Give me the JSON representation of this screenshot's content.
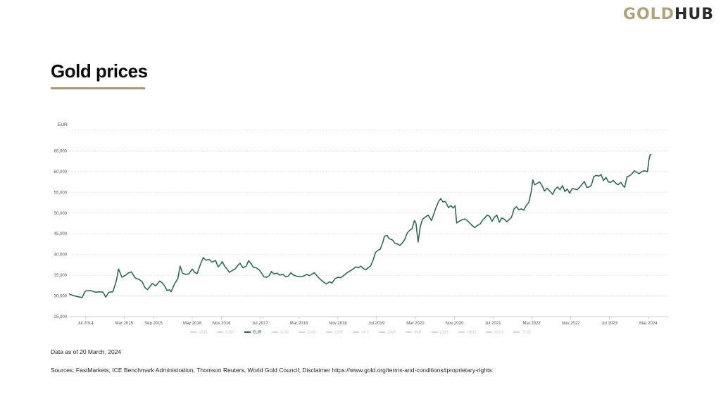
{
  "brand": {
    "part1": "GOLD",
    "part2": "HUB",
    "color_gold": "#b1a27a",
    "color_dark": "#2a2a2a"
  },
  "page_title": "Gold prices",
  "legend": [
    {
      "label": "USD",
      "active": false
    },
    {
      "label": "GBP",
      "active": false
    },
    {
      "label": "EUR",
      "active": true
    },
    {
      "label": "AUD",
      "active": false
    },
    {
      "label": "CAD",
      "active": false
    },
    {
      "label": "CHF",
      "active": false
    },
    {
      "label": "JPY",
      "active": false
    },
    {
      "label": "ZAR",
      "active": false
    },
    {
      "label": "INR",
      "active": false
    },
    {
      "label": "CNY",
      "active": false
    },
    {
      "label": "HKD",
      "active": false
    },
    {
      "label": "MXN",
      "active": false
    },
    {
      "label": "SGD",
      "active": false
    }
  ],
  "note": "Data as of 20 March, 2024",
  "sources": "Sources: FastMarkets, ICE Benchmark Administration, Thomson Reuters, World Gold Council; Disclaimer https://www.gold.org/terms-and-conditions#proprietary-rights",
  "chart_data": {
    "type": "line",
    "ylabel": "EUR",
    "ylim": [
      25000,
      70000
    ],
    "yticks": [
      "25,000",
      "30,000",
      "35,000",
      "40,000",
      "45,000",
      "50,000",
      "55,000",
      "60,000",
      "65,000"
    ],
    "ytick_values": [
      25000,
      30000,
      35000,
      40000,
      45000,
      50000,
      55000,
      60000,
      65000
    ],
    "xlim": [
      "2014-03-20",
      "2024-03-20"
    ],
    "xticks": [
      {
        "label": "Jul 2014",
        "date": "2014-07-01"
      },
      {
        "label": "Mar 2015",
        "date": "2015-03-01"
      },
      {
        "label": "Sep 2015",
        "date": "2015-09-01"
      },
      {
        "label": "May 2016",
        "date": "2016-05-01"
      },
      {
        "label": "Nov 2016",
        "date": "2016-11-01"
      },
      {
        "label": "Jul 2017",
        "date": "2017-07-01"
      },
      {
        "label": "Mar 2018",
        "date": "2018-03-01"
      },
      {
        "label": "Nov 2018",
        "date": "2018-11-01"
      },
      {
        "label": "Jul 2019",
        "date": "2019-07-01"
      },
      {
        "label": "Mar 2020",
        "date": "2020-03-01"
      },
      {
        "label": "Nov 2020",
        "date": "2020-11-01"
      },
      {
        "label": "Jul 2021",
        "date": "2021-07-01"
      },
      {
        "label": "Mar 2022",
        "date": "2022-03-01"
      },
      {
        "label": "Nov 2022",
        "date": "2022-11-01"
      },
      {
        "label": "Jul 2023",
        "date": "2023-07-01"
      },
      {
        "label": "Mar 2024",
        "date": "2024-03-01"
      }
    ],
    "grid": true,
    "series": [
      {
        "name": "EUR",
        "color": "#2c6b59",
        "points": [
          [
            "2014-03-20",
            30500
          ],
          [
            "2014-04-15",
            30100
          ],
          [
            "2014-05-15",
            29800
          ],
          [
            "2014-06-10",
            29600
          ],
          [
            "2014-07-01",
            31200
          ],
          [
            "2014-08-01",
            31300
          ],
          [
            "2014-09-01",
            30900
          ],
          [
            "2014-10-01",
            31000
          ],
          [
            "2014-10-20",
            30900
          ],
          [
            "2014-11-05",
            29700
          ],
          [
            "2014-11-25",
            30900
          ],
          [
            "2014-12-20",
            31000
          ],
          [
            "2015-01-10",
            33500
          ],
          [
            "2015-01-25",
            36500
          ],
          [
            "2015-02-15",
            34500
          ],
          [
            "2015-03-10",
            35000
          ],
          [
            "2015-03-25",
            35500
          ],
          [
            "2015-04-15",
            35800
          ],
          [
            "2015-05-10",
            34300
          ],
          [
            "2015-06-01",
            34000
          ],
          [
            "2015-06-20",
            33500
          ],
          [
            "2015-07-10",
            32000
          ],
          [
            "2015-07-25",
            31500
          ],
          [
            "2015-08-10",
            32300
          ],
          [
            "2015-08-25",
            33000
          ],
          [
            "2015-09-15",
            32400
          ],
          [
            "2015-10-10",
            33600
          ],
          [
            "2015-10-25",
            33200
          ],
          [
            "2015-11-10",
            32400
          ],
          [
            "2015-11-25",
            31300
          ],
          [
            "2015-12-10",
            31500
          ],
          [
            "2015-12-20",
            31000
          ],
          [
            "2016-01-10",
            32800
          ],
          [
            "2016-02-01",
            34200
          ],
          [
            "2016-02-15",
            37200
          ],
          [
            "2016-03-01",
            35500
          ],
          [
            "2016-03-20",
            35200
          ],
          [
            "2016-04-10",
            35300
          ],
          [
            "2016-05-01",
            36500
          ],
          [
            "2016-05-15",
            35700
          ],
          [
            "2016-06-01",
            35400
          ],
          [
            "2016-06-25",
            38000
          ],
          [
            "2016-07-10",
            39300
          ],
          [
            "2016-07-25",
            38600
          ],
          [
            "2016-08-15",
            38800
          ],
          [
            "2016-09-01",
            38200
          ],
          [
            "2016-09-25",
            38500
          ],
          [
            "2016-10-10",
            37000
          ],
          [
            "2016-10-25",
            37600
          ],
          [
            "2016-11-05",
            38300
          ],
          [
            "2016-11-20",
            37200
          ],
          [
            "2016-12-05",
            36500
          ],
          [
            "2016-12-20",
            35700
          ],
          [
            "2017-01-10",
            36200
          ],
          [
            "2017-01-25",
            36500
          ],
          [
            "2017-02-10",
            37300
          ],
          [
            "2017-02-25",
            37900
          ],
          [
            "2017-03-15",
            36800
          ],
          [
            "2017-04-05",
            37200
          ],
          [
            "2017-04-20",
            38500
          ],
          [
            "2017-05-05",
            37800
          ],
          [
            "2017-05-20",
            36900
          ],
          [
            "2017-06-05",
            36800
          ],
          [
            "2017-06-25",
            36300
          ],
          [
            "2017-07-10",
            35500
          ],
          [
            "2017-07-25",
            34600
          ],
          [
            "2017-08-10",
            34500
          ],
          [
            "2017-08-25",
            34800
          ],
          [
            "2017-09-10",
            35900
          ],
          [
            "2017-09-25",
            35300
          ],
          [
            "2017-10-15",
            35500
          ],
          [
            "2017-11-01",
            35000
          ],
          [
            "2017-11-20",
            35200
          ],
          [
            "2017-12-10",
            34600
          ],
          [
            "2017-12-25",
            34800
          ],
          [
            "2018-01-10",
            35600
          ],
          [
            "2018-01-25",
            35100
          ],
          [
            "2018-02-10",
            34800
          ],
          [
            "2018-02-25",
            34700
          ],
          [
            "2018-03-15",
            34600
          ],
          [
            "2018-04-05",
            34900
          ],
          [
            "2018-04-20",
            35200
          ],
          [
            "2018-05-05",
            34900
          ],
          [
            "2018-05-20",
            35200
          ],
          [
            "2018-06-05",
            35600
          ],
          [
            "2018-06-20",
            35000
          ],
          [
            "2018-07-05",
            34300
          ],
          [
            "2018-07-20",
            33800
          ],
          [
            "2018-08-05",
            33300
          ],
          [
            "2018-08-20",
            32900
          ],
          [
            "2018-09-10",
            33400
          ],
          [
            "2018-09-25",
            33100
          ],
          [
            "2018-10-15",
            34200
          ],
          [
            "2018-11-01",
            34500
          ],
          [
            "2018-11-20",
            34400
          ],
          [
            "2018-12-10",
            35000
          ],
          [
            "2018-12-25",
            35500
          ],
          [
            "2019-01-15",
            36000
          ],
          [
            "2019-02-05",
            36500
          ],
          [
            "2019-02-20",
            37000
          ],
          [
            "2019-03-10",
            36800
          ],
          [
            "2019-03-25",
            37200
          ],
          [
            "2019-04-10",
            36600
          ],
          [
            "2019-04-25",
            36300
          ],
          [
            "2019-05-10",
            36800
          ],
          [
            "2019-05-25",
            37200
          ],
          [
            "2019-06-10",
            38700
          ],
          [
            "2019-06-25",
            40500
          ],
          [
            "2019-07-10",
            41000
          ],
          [
            "2019-07-25",
            41300
          ],
          [
            "2019-08-10",
            43000
          ],
          [
            "2019-08-20",
            44400
          ],
          [
            "2019-09-05",
            44600
          ],
          [
            "2019-09-20",
            43800
          ],
          [
            "2019-10-10",
            43500
          ],
          [
            "2019-10-25",
            42700
          ],
          [
            "2019-11-10",
            42500
          ],
          [
            "2019-11-25",
            42200
          ],
          [
            "2019-12-10",
            42800
          ],
          [
            "2019-12-25",
            43600
          ],
          [
            "2020-01-10",
            45200
          ],
          [
            "2020-01-25",
            45800
          ],
          [
            "2020-02-10",
            46300
          ],
          [
            "2020-02-24",
            48200
          ],
          [
            "2020-03-05",
            47500
          ],
          [
            "2020-03-18",
            43000
          ],
          [
            "2020-04-01",
            46800
          ],
          [
            "2020-04-15",
            48500
          ],
          [
            "2020-05-01",
            49000
          ],
          [
            "2020-05-20",
            49500
          ],
          [
            "2020-06-10",
            48200
          ],
          [
            "2020-06-25",
            49800
          ],
          [
            "2020-07-10",
            51500
          ],
          [
            "2020-07-25",
            52800
          ],
          [
            "2020-08-07",
            53500
          ],
          [
            "2020-08-20",
            52700
          ],
          [
            "2020-09-05",
            52800
          ],
          [
            "2020-09-25",
            51300
          ],
          [
            "2020-10-10",
            51800
          ],
          [
            "2020-10-25",
            51200
          ],
          [
            "2020-11-05",
            51800
          ],
          [
            "2020-11-15",
            47600
          ],
          [
            "2020-11-30",
            48000
          ],
          [
            "2020-12-15",
            48300
          ],
          [
            "2021-01-05",
            48600
          ],
          [
            "2021-01-20",
            48200
          ],
          [
            "2021-02-05",
            47600
          ],
          [
            "2021-02-20",
            47000
          ],
          [
            "2021-03-08",
            46500
          ],
          [
            "2021-03-25",
            47000
          ],
          [
            "2021-04-10",
            47300
          ],
          [
            "2021-04-25",
            48200
          ],
          [
            "2021-05-10",
            48800
          ],
          [
            "2021-05-25",
            49500
          ],
          [
            "2021-06-10",
            49200
          ],
          [
            "2021-06-25",
            48000
          ],
          [
            "2021-07-10",
            49000
          ],
          [
            "2021-07-25",
            49500
          ],
          [
            "2021-08-10",
            47800
          ],
          [
            "2021-08-25",
            48800
          ],
          [
            "2021-09-10",
            48500
          ],
          [
            "2021-09-25",
            47900
          ],
          [
            "2021-10-10",
            48400
          ],
          [
            "2021-10-25",
            49000
          ],
          [
            "2021-11-10",
            51000
          ],
          [
            "2021-11-25",
            51500
          ],
          [
            "2021-12-10",
            50800
          ],
          [
            "2021-12-25",
            51000
          ],
          [
            "2022-01-10",
            50700
          ],
          [
            "2022-01-25",
            51800
          ],
          [
            "2022-02-10",
            52500
          ],
          [
            "2022-02-25",
            55000
          ],
          [
            "2022-03-08",
            58000
          ],
          [
            "2022-03-20",
            56800
          ],
          [
            "2022-04-05",
            57200
          ],
          [
            "2022-04-20",
            57500
          ],
          [
            "2022-05-05",
            56600
          ],
          [
            "2022-05-20",
            55300
          ],
          [
            "2022-06-05",
            56000
          ],
          [
            "2022-06-25",
            55200
          ],
          [
            "2022-07-10",
            54500
          ],
          [
            "2022-07-25",
            55700
          ],
          [
            "2022-08-10",
            56300
          ],
          [
            "2022-08-25",
            55600
          ],
          [
            "2022-09-10",
            56600
          ],
          [
            "2022-09-25",
            55200
          ],
          [
            "2022-10-10",
            55800
          ],
          [
            "2022-10-25",
            54800
          ],
          [
            "2022-11-10",
            55900
          ],
          [
            "2022-11-25",
            55800
          ],
          [
            "2022-12-10",
            55600
          ],
          [
            "2022-12-25",
            56200
          ],
          [
            "2023-01-10",
            56900
          ],
          [
            "2023-01-25",
            57600
          ],
          [
            "2023-02-10",
            56200
          ],
          [
            "2023-02-25",
            56300
          ],
          [
            "2023-03-10",
            56700
          ],
          [
            "2023-03-25",
            58800
          ],
          [
            "2023-04-10",
            59100
          ],
          [
            "2023-04-25",
            58900
          ],
          [
            "2023-05-10",
            59300
          ],
          [
            "2023-05-25",
            57800
          ],
          [
            "2023-06-10",
            58600
          ],
          [
            "2023-06-25",
            57500
          ],
          [
            "2023-07-10",
            57400
          ],
          [
            "2023-07-25",
            57900
          ],
          [
            "2023-08-10",
            57200
          ],
          [
            "2023-08-25",
            56800
          ],
          [
            "2023-09-10",
            57400
          ],
          [
            "2023-09-25",
            56600
          ],
          [
            "2023-10-05",
            56200
          ],
          [
            "2023-10-20",
            58800
          ],
          [
            "2023-11-05",
            59000
          ],
          [
            "2023-11-20",
            59500
          ],
          [
            "2023-12-05",
            60200
          ],
          [
            "2023-12-20",
            59800
          ],
          [
            "2024-01-05",
            59500
          ],
          [
            "2024-01-20",
            60000
          ],
          [
            "2024-02-05",
            60200
          ],
          [
            "2024-02-25",
            60000
          ],
          [
            "2024-03-05",
            62800
          ],
          [
            "2024-03-12",
            64000
          ],
          [
            "2024-03-20",
            64200
          ]
        ]
      }
    ]
  }
}
